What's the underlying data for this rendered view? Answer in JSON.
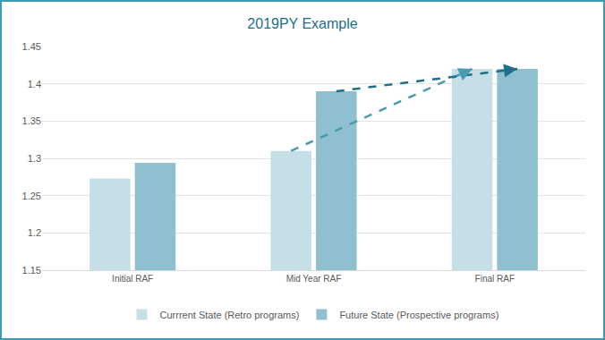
{
  "chart_data": {
    "type": "bar",
    "title": "2019PY Example",
    "categories": [
      "Initial RAF",
      "Mid Year RAF",
      "Final RAF"
    ],
    "series": [
      {
        "name": "Currrent State (Retro programs)",
        "color": "#c6dfe6",
        "values": [
          1.273,
          1.31,
          1.42
        ]
      },
      {
        "name": "Future State (Prospective programs)",
        "color": "#8fc0cf",
        "values": [
          1.294,
          1.39,
          1.42
        ]
      }
    ],
    "ylim": [
      1.15,
      1.45
    ],
    "yticks": [
      1.15,
      1.2,
      1.25,
      1.3,
      1.35,
      1.4,
      1.45
    ],
    "grid": true,
    "legend": "bottom"
  }
}
